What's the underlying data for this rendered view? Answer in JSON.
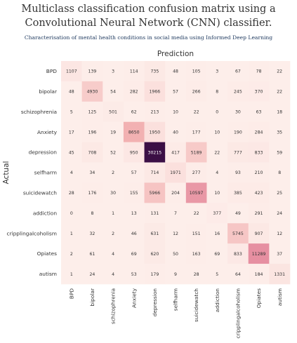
{
  "header": {
    "title_line1": "Multiclass classification confusion matrix using a",
    "title_line2": "Convolutional Neural Network (CNN) classifier.",
    "subtitle": "Characterisation of mental health conditions in social media using Informed Deep Learning"
  },
  "chart_data": {
    "type": "heatmap",
    "xlabel": "Prediction",
    "ylabel": "Actual",
    "labels": [
      "BPD",
      "bipolar",
      "schizophrenia",
      "Anxiety",
      "depression",
      "selfharm",
      "suicidewatch",
      "addiction",
      "cripplingalcoholism",
      "Opiates",
      "autism"
    ],
    "rows": [
      {
        "label": "BPD",
        "values": [
          1107,
          139,
          3,
          114,
          735,
          48,
          105,
          3,
          67,
          78,
          22
        ]
      },
      {
        "label": "bipolar",
        "values": [
          48,
          4930,
          54,
          282,
          1966,
          57,
          266,
          8,
          245,
          370,
          22
        ]
      },
      {
        "label": "schizophrenia",
        "values": [
          5,
          125,
          501,
          62,
          213,
          10,
          22,
          0,
          30,
          63,
          18
        ]
      },
      {
        "label": "Anxiety",
        "values": [
          17,
          196,
          19,
          8650,
          1950,
          40,
          177,
          10,
          190,
          284,
          35
        ]
      },
      {
        "label": "depression",
        "values": [
          45,
          708,
          52,
          950,
          30215,
          417,
          5189,
          22,
          777,
          833,
          59
        ]
      },
      {
        "label": "selfharm",
        "values": [
          4,
          34,
          2,
          57,
          714,
          1971,
          277,
          4,
          93,
          210,
          8
        ]
      },
      {
        "label": "suicidewatch",
        "values": [
          28,
          176,
          30,
          155,
          5966,
          204,
          10597,
          10,
          385,
          423,
          25
        ]
      },
      {
        "label": "addiction",
        "values": [
          0,
          8,
          1,
          13,
          131,
          7,
          22,
          377,
          49,
          291,
          24
        ]
      },
      {
        "label": "cripplingalcoholism",
        "values": [
          1,
          32,
          2,
          46,
          631,
          12,
          151,
          16,
          5745,
          907,
          12
        ]
      },
      {
        "label": "Opiates",
        "values": [
          2,
          61,
          4,
          69,
          620,
          50,
          163,
          69,
          833,
          11289,
          37
        ]
      },
      {
        "label": "autism",
        "values": [
          1,
          24,
          4,
          53,
          179,
          9,
          28,
          5,
          64,
          184,
          1331
        ]
      }
    ],
    "colors": {
      "low": "#fdeeea",
      "mid": "#f3b3b3",
      "high": "#cd4c80",
      "max": "#3b0f45",
      "text_dark": "#333333",
      "text_light": "#ffffff"
    }
  }
}
